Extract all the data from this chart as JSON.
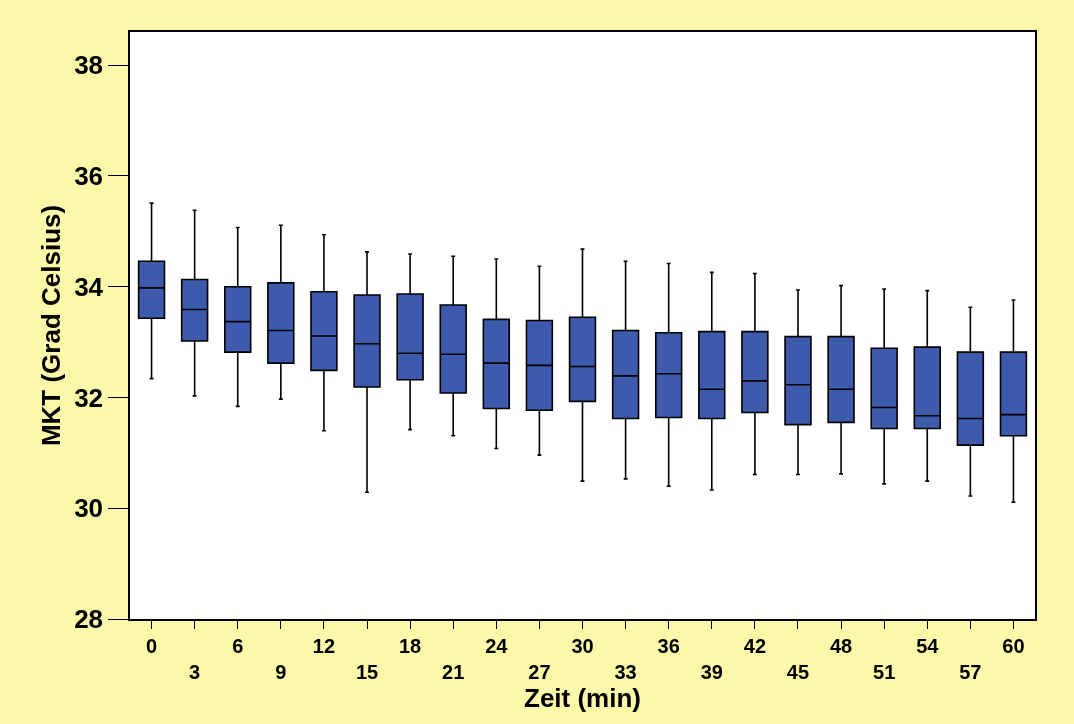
{
  "chart_data": {
    "type": "box",
    "xlabel": "Zeit (min)",
    "ylabel": "MKT (Grad Celsius)",
    "categories": [
      "0",
      "3",
      "6",
      "9",
      "12",
      "15",
      "18",
      "21",
      "24",
      "27",
      "30",
      "33",
      "36",
      "39",
      "42",
      "45",
      "48",
      "51",
      "54",
      "57",
      "60"
    ],
    "ylim": [
      28,
      38.6
    ],
    "yticks": [
      28,
      30,
      32,
      34,
      36,
      38
    ],
    "series": [
      {
        "color": "#3d5aad",
        "boxes": [
          {
            "low": 32.34,
            "q1": 33.43,
            "median": 33.98,
            "q3": 34.46,
            "high": 35.51
          },
          {
            "low": 32.03,
            "q1": 33.02,
            "median": 33.59,
            "q3": 34.13,
            "high": 35.38
          },
          {
            "low": 31.84,
            "q1": 32.82,
            "median": 33.37,
            "q3": 34.0,
            "high": 35.07
          },
          {
            "low": 31.97,
            "q1": 32.62,
            "median": 33.21,
            "q3": 34.07,
            "high": 35.11
          },
          {
            "low": 31.4,
            "q1": 32.49,
            "median": 33.11,
            "q3": 33.91,
            "high": 34.94
          },
          {
            "low": 30.29,
            "q1": 32.19,
            "median": 32.97,
            "q3": 33.85,
            "high": 34.63
          },
          {
            "low": 31.42,
            "q1": 32.32,
            "median": 32.8,
            "q3": 33.87,
            "high": 34.59
          },
          {
            "low": 31.31,
            "q1": 32.08,
            "median": 32.78,
            "q3": 33.67,
            "high": 34.55
          },
          {
            "low": 31.08,
            "q1": 31.8,
            "median": 32.62,
            "q3": 33.41,
            "high": 34.5
          },
          {
            "low": 30.96,
            "q1": 31.77,
            "median": 32.58,
            "q3": 33.39,
            "high": 34.37
          },
          {
            "low": 30.49,
            "q1": 31.93,
            "median": 32.56,
            "q3": 33.45,
            "high": 34.68
          },
          {
            "low": 30.53,
            "q1": 31.62,
            "median": 32.39,
            "q3": 33.21,
            "high": 34.46
          },
          {
            "low": 30.4,
            "q1": 31.64,
            "median": 32.43,
            "q3": 33.17,
            "high": 34.42
          },
          {
            "low": 30.33,
            "q1": 31.62,
            "median": 32.15,
            "q3": 33.19,
            "high": 34.26
          },
          {
            "low": 30.61,
            "q1": 31.73,
            "median": 32.3,
            "q3": 33.19,
            "high": 34.24
          },
          {
            "low": 30.61,
            "q1": 31.51,
            "median": 32.23,
            "q3": 33.1,
            "high": 33.94
          },
          {
            "low": 30.62,
            "q1": 31.55,
            "median": 32.15,
            "q3": 33.1,
            "high": 34.02
          },
          {
            "low": 30.44,
            "q1": 31.44,
            "median": 31.82,
            "q3": 32.89,
            "high": 33.96
          },
          {
            "low": 30.49,
            "q1": 31.44,
            "median": 31.67,
            "q3": 32.91,
            "high": 33.93
          },
          {
            "low": 30.22,
            "q1": 31.14,
            "median": 31.62,
            "q3": 32.82,
            "high": 33.63
          },
          {
            "low": 30.11,
            "q1": 31.31,
            "median": 31.69,
            "q3": 32.82,
            "high": 33.76
          }
        ]
      }
    ]
  }
}
